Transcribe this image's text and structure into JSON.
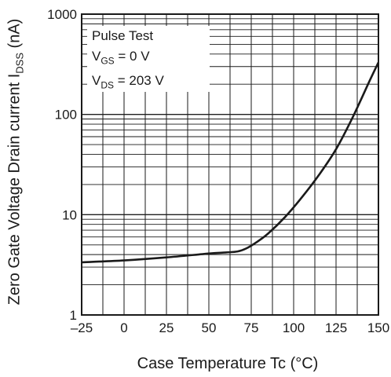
{
  "chart_data": {
    "type": "line",
    "xlabel": "Case Temperature   Tc  (°C)",
    "ylabel": {
      "text": "Zero Gate Voltage Drain current  I",
      "sub": "DSS",
      "unit": " (nA)"
    },
    "xlim": [
      -25,
      150
    ],
    "ylim": [
      1,
      1000
    ],
    "y_scale": "log",
    "grid": true,
    "xticks": [
      "-25",
      "0",
      "25",
      "50",
      "75",
      "100",
      "125",
      "150"
    ],
    "yticks": [
      "1",
      "10",
      "100",
      "1000"
    ],
    "annotations": [
      {
        "text": "Pulse Test"
      },
      {
        "main": "V",
        "sub": "GS",
        "rest": " = 0 V"
      },
      {
        "main": "V",
        "sub": "DS",
        "rest": " = 203 V"
      }
    ],
    "series": [
      {
        "x": [
          -25,
          0,
          25,
          50,
          60,
          67,
          72,
          78,
          85,
          95,
          105,
          115,
          125,
          135,
          145,
          150
        ],
        "y": [
          3.35,
          3.5,
          3.75,
          4.1,
          4.2,
          4.3,
          4.6,
          5.3,
          6.5,
          9.5,
          15,
          25,
          45,
          95,
          220,
          330
        ]
      }
    ]
  }
}
